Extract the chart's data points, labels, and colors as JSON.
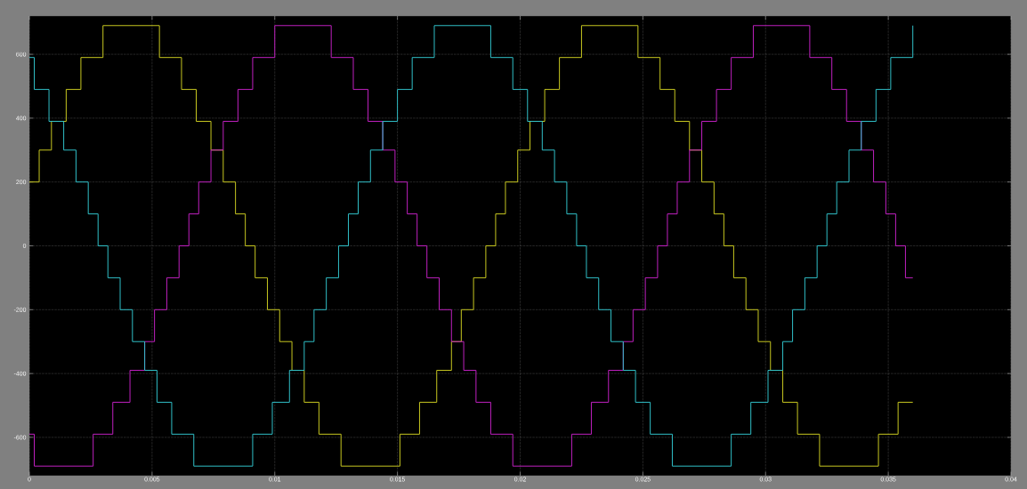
{
  "chart_data": {
    "type": "step",
    "xlim": [
      0,
      0.04
    ],
    "ylim": [
      -720,
      720
    ],
    "grid": true,
    "xticks": [
      0,
      0.005,
      0.01,
      0.015,
      0.02,
      0.025,
      0.03,
      0.035,
      0.04
    ],
    "yticks": [
      -600,
      -400,
      -200,
      0,
      200,
      400,
      600
    ],
    "series": [
      {
        "color": "#c8c820",
        "x": [
          0,
          0.0004,
          0.0009,
          0.0015,
          0.0021,
          0.003,
          0.0053,
          0.0062,
          0.0068,
          0.0074,
          0.0079,
          0.0084,
          0.0088,
          0.0092,
          0.0097,
          0.0102,
          0.0107,
          0.0112,
          0.0118,
          0.0127,
          0.0151,
          0.0159,
          0.0166,
          0.0172,
          0.0176,
          0.0181,
          0.0186,
          0.019,
          0.0194,
          0.0199,
          0.0204,
          0.021,
          0.0216,
          0.0225,
          0.0248,
          0.0257,
          0.0263,
          0.0269,
          0.0274,
          0.0279,
          0.0283,
          0.0287,
          0.0292,
          0.0297,
          0.0302,
          0.0307,
          0.0313,
          0.0322,
          0.0346,
          0.0354,
          0.036
        ],
        "values": [
          200,
          300,
          390,
          490,
          590,
          690,
          590,
          490,
          390,
          300,
          200,
          100,
          0,
          -100,
          -200,
          -300,
          -390,
          -490,
          -590,
          -690,
          -590,
          -490,
          -390,
          -300,
          -200,
          -100,
          0,
          100,
          200,
          300,
          390,
          490,
          590,
          690,
          590,
          490,
          390,
          300,
          200,
          100,
          0,
          -100,
          -200,
          -300,
          -390,
          -490,
          -590,
          -690,
          -590,
          -490,
          -490
        ]
      },
      {
        "color": "#c020c0",
        "x": [
          0,
          0.0002,
          0.0026,
          0.0034,
          0.0041,
          0.0047,
          0.0051,
          0.0056,
          0.0061,
          0.0065,
          0.0069,
          0.0074,
          0.0079,
          0.0085,
          0.0091,
          0.01,
          0.0123,
          0.0132,
          0.0138,
          0.0144,
          0.0149,
          0.0154,
          0.0158,
          0.0162,
          0.0167,
          0.0172,
          0.0177,
          0.0182,
          0.0188,
          0.0197,
          0.0221,
          0.0229,
          0.0236,
          0.0242,
          0.0246,
          0.0251,
          0.0256,
          0.026,
          0.0264,
          0.0269,
          0.0274,
          0.028,
          0.0286,
          0.0295,
          0.0318,
          0.0327,
          0.0333,
          0.0339,
          0.0344,
          0.0349,
          0.0353,
          0.0357,
          0.036
        ],
        "values": [
          -590,
          -690,
          -590,
          -490,
          -390,
          -300,
          -200,
          -100,
          0,
          100,
          200,
          300,
          390,
          490,
          590,
          690,
          590,
          490,
          390,
          300,
          200,
          100,
          0,
          -100,
          -200,
          -300,
          -390,
          -490,
          -590,
          -690,
          -590,
          -490,
          -390,
          -300,
          -200,
          -100,
          0,
          100,
          200,
          300,
          390,
          490,
          590,
          690,
          590,
          490,
          390,
          300,
          200,
          100,
          0,
          -100,
          -100
        ]
      },
      {
        "color": "#30c0c8",
        "x": [
          0,
          0.0002,
          0.0008,
          0.0014,
          0.0019,
          0.0024,
          0.0028,
          0.0032,
          0.0037,
          0.0042,
          0.0047,
          0.0052,
          0.0058,
          0.0067,
          0.0091,
          0.0099,
          0.0106,
          0.0112,
          0.0116,
          0.0121,
          0.0126,
          0.013,
          0.0134,
          0.0139,
          0.0144,
          0.015,
          0.0156,
          0.0165,
          0.0188,
          0.0197,
          0.0203,
          0.0209,
          0.0214,
          0.0219,
          0.0223,
          0.0227,
          0.0232,
          0.0237,
          0.0242,
          0.0247,
          0.0253,
          0.0262,
          0.0286,
          0.0294,
          0.0301,
          0.0307,
          0.0311,
          0.0316,
          0.0321,
          0.0325,
          0.0329,
          0.0334,
          0.0339,
          0.0345,
          0.0351,
          0.036
        ],
        "values": [
          590,
          490,
          390,
          300,
          200,
          100,
          0,
          -100,
          -200,
          -300,
          -390,
          -490,
          -590,
          -690,
          -590,
          -490,
          -390,
          -300,
          -200,
          -100,
          0,
          100,
          200,
          300,
          390,
          490,
          590,
          690,
          590,
          490,
          390,
          300,
          200,
          100,
          0,
          -100,
          -200,
          -300,
          -390,
          -490,
          -590,
          -690,
          -590,
          -490,
          -390,
          -300,
          -200,
          -100,
          0,
          100,
          200,
          300,
          390,
          490,
          590,
          690
        ]
      }
    ]
  }
}
